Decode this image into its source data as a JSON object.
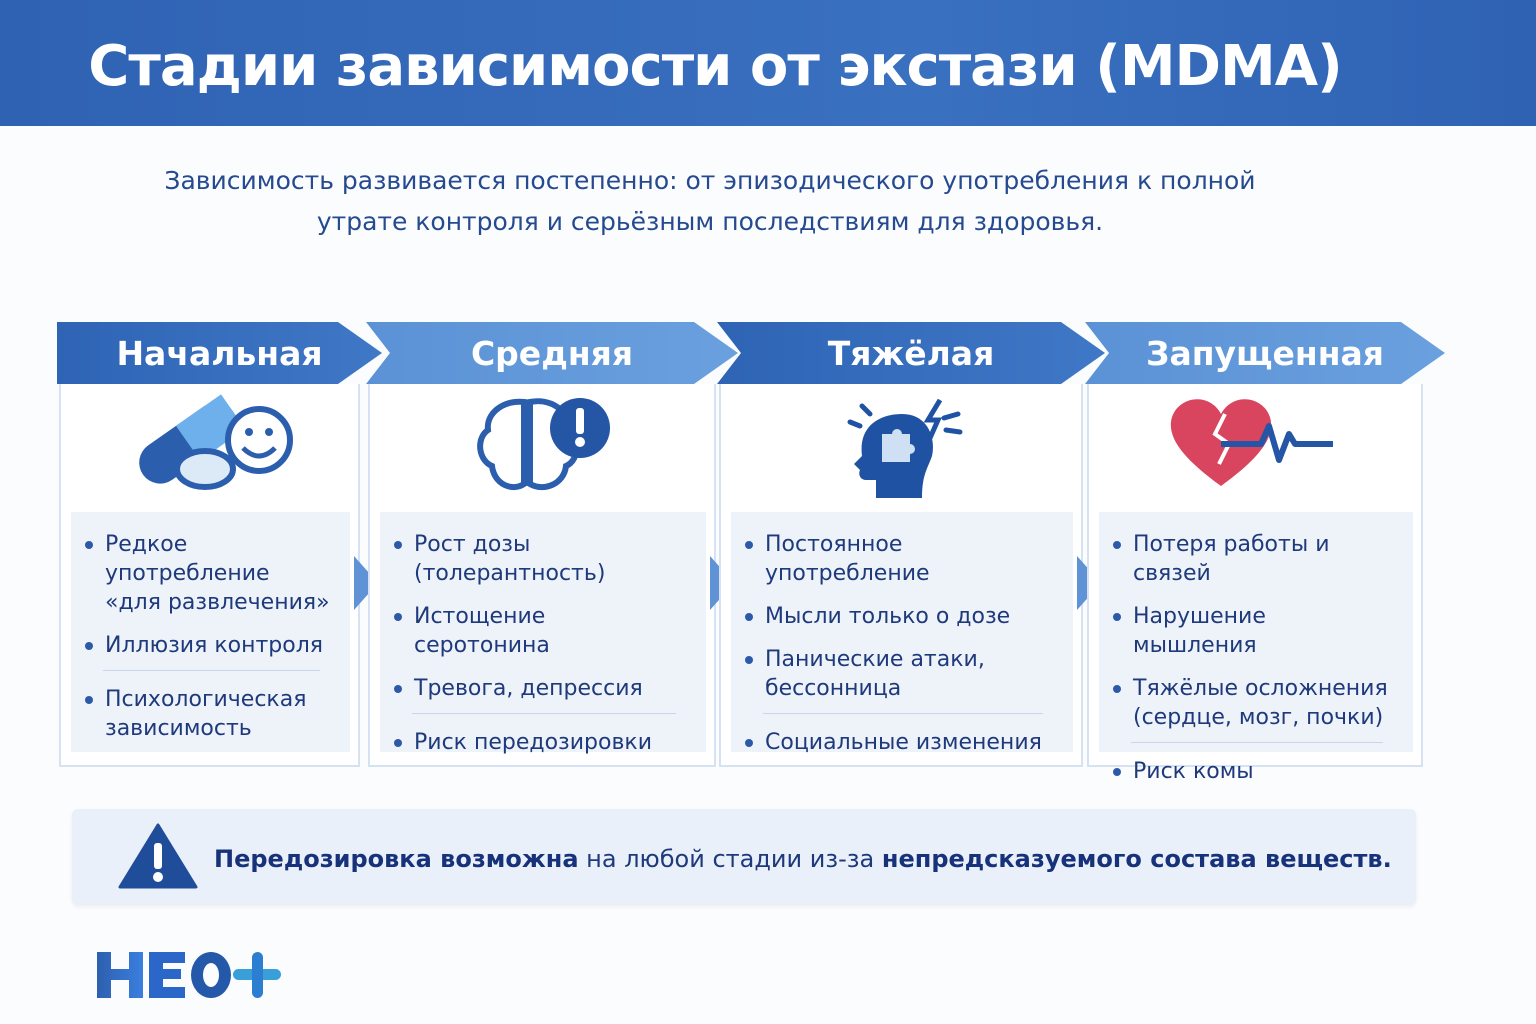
{
  "title": "Стадии зависимости от экстази (MDMA)",
  "subtitle": "Зависимость развивается постепенно: от эпизодического употребления к полной утрате контроля и серьёзным последствиям для здоровья.",
  "stages": [
    {
      "name": "Начальная",
      "icon": "pills-smiley-icon",
      "items": [
        "Редкое употребление «для развлечения»",
        "Иллюзия контроля",
        "Психологическая зависимость"
      ],
      "divider_before": 2
    },
    {
      "name": "Средняя",
      "icon": "brain-alert-icon",
      "items": [
        "Рост дозы (толерантность)",
        "Истощение серотонина",
        "Тревога, депрессия",
        "Риск передозировки"
      ],
      "divider_before": 3
    },
    {
      "name": "Тяжёлая",
      "icon": "head-puzzle-lightning-icon",
      "items": [
        "Постоянное употребление",
        "Мысли только о дозе",
        "Панические атаки, бессонница",
        "Социальные изменения"
      ],
      "divider_before": 3
    },
    {
      "name": "Запущенная",
      "icon": "broken-heart-pulse-icon",
      "items": [
        "Потеря работы и связей",
        "Нарушение мышления",
        "Тяжёлые осложнения (сердце, мозг, почки)",
        "Риск комы"
      ],
      "divider_before": 3
    }
  ],
  "warning": {
    "icon": "warning-triangle-icon",
    "bold1": "Передозировка возможна",
    "text": " на любой стадии из-за ",
    "bold2": "непредсказуемого состава веществ."
  },
  "logo": "НЕО+",
  "colors": {
    "header": "#3168b7",
    "accent": "#2c5aa8",
    "heart": "#d9445e"
  }
}
